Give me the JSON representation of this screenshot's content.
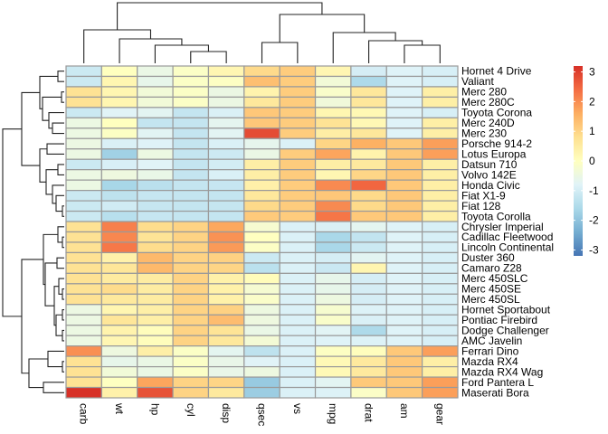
{
  "chart_data": {
    "type": "heatmap",
    "title": "",
    "columns": [
      "carb",
      "wt",
      "hp",
      "cyl",
      "disp",
      "qsec",
      "vs",
      "mpg",
      "drat",
      "am",
      "gear"
    ],
    "rows": [
      "Hornet 4 Drive",
      "Valiant",
      "Merc 280",
      "Merc 280C",
      "Toyota Corona",
      "Merc 240D",
      "Merc 230",
      "Porsche 914-2",
      "Lotus Europa",
      "Datsun 710",
      "Volvo 142E",
      "Honda Civic",
      "Fiat X1-9",
      "Fiat 128",
      "Toyota Corolla",
      "Chrysler Imperial",
      "Cadillac Fleetwood",
      "Lincoln Continental",
      "Duster 360",
      "Camaro Z28",
      "Merc 450SLC",
      "Merc 450SE",
      "Merc 450SL",
      "Hornet Sportabout",
      "Pontiac Firebird",
      "Dodge Challenger",
      "AMC Javelin",
      "Ferrari Dino",
      "Mazda RX4",
      "Mazda RX4 Wag",
      "Ford Pantera L",
      "Maserati Bora"
    ],
    "values": [
      [
        -1.12,
        -0.0,
        -0.54,
        -0.1,
        0.22,
        0.89,
        1.12,
        0.22,
        -0.97,
        -0.81,
        -0.93
      ],
      [
        -1.12,
        0.23,
        -0.61,
        -0.1,
        -0.05,
        1.33,
        1.12,
        -0.33,
        -1.56,
        -0.81,
        -0.93
      ],
      [
        0.74,
        0.23,
        -0.35,
        -0.1,
        -0.51,
        0.31,
        1.12,
        -0.15,
        0.61,
        -0.81,
        0.42
      ],
      [
        0.74,
        0.23,
        -0.35,
        -0.1,
        -0.51,
        0.59,
        1.12,
        -0.38,
        0.61,
        -0.81,
        0.42
      ],
      [
        -1.12,
        -0.77,
        -0.71,
        -1.22,
        -0.89,
        1.2,
        1.12,
        0.23,
        0.19,
        -0.81,
        -0.93
      ],
      [
        -0.5,
        -0.0,
        -1.23,
        -1.22,
        -0.68,
        1.2,
        1.12,
        0.72,
        0.17,
        -0.81,
        0.42
      ],
      [
        -0.5,
        -0.07,
        -0.75,
        -1.22,
        -0.73,
        2.83,
        1.12,
        0.45,
        0.61,
        -0.81,
        0.42
      ],
      [
        -0.5,
        -0.89,
        -0.82,
        -1.22,
        -0.89,
        -0.64,
        -0.87,
        0.98,
        1.56,
        1.19,
        1.78
      ],
      [
        -0.5,
        -1.74,
        -0.49,
        -1.22,
        -1.09,
        -0.53,
        1.12,
        1.71,
        0.32,
        1.19,
        1.78
      ],
      [
        -1.12,
        -0.92,
        -0.78,
        -1.22,
        -0.99,
        0.43,
        1.12,
        0.45,
        0.57,
        1.19,
        0.42
      ],
      [
        -0.5,
        -0.45,
        -0.56,
        -1.22,
        -0.89,
        0.43,
        1.12,
        0.22,
        0.96,
        1.19,
        0.42
      ],
      [
        -0.5,
        -1.64,
        -1.38,
        -1.22,
        -1.2,
        0.38,
        1.12,
        2.04,
        2.49,
        1.19,
        0.42
      ],
      [
        -1.12,
        -1.31,
        -1.19,
        -1.22,
        -1.22,
        0.59,
        1.12,
        1.2,
        0.9,
        1.19,
        0.42
      ],
      [
        -1.12,
        -1.04,
        -1.19,
        -1.22,
        -1.21,
        0.9,
        1.12,
        2.04,
        0.9,
        1.19,
        0.42
      ],
      [
        -1.12,
        -1.41,
        -1.19,
        -1.22,
        -1.22,
        1.15,
        1.12,
        2.29,
        1.17,
        1.19,
        0.42
      ],
      [
        0.74,
        2.17,
        0.85,
        1.01,
        1.68,
        -0.24,
        -0.87,
        -0.89,
        -0.69,
        -0.81,
        -0.93
      ],
      [
        0.74,
        2.08,
        0.7,
        1.01,
        1.95,
        -0.01,
        -0.87,
        -1.61,
        -1.25,
        -0.81,
        -0.93
      ],
      [
        0.74,
        2.26,
        0.85,
        1.01,
        1.85,
        -0.08,
        -0.87,
        -1.61,
        -1.12,
        -0.81,
        -0.93
      ],
      [
        0.74,
        0.36,
        1.43,
        1.01,
        1.04,
        -1.12,
        -0.87,
        -0.96,
        -0.72,
        -0.81,
        -0.93
      ],
      [
        0.74,
        0.64,
        1.43,
        1.01,
        0.97,
        -1.36,
        -0.87,
        -1.13,
        0.25,
        -0.81,
        -0.93
      ],
      [
        0.74,
        0.52,
        0.49,
        1.01,
        0.37,
        0.08,
        -0.87,
        -0.61,
        -0.97,
        -0.81,
        -0.93
      ],
      [
        0.74,
        0.87,
        0.49,
        1.01,
        0.37,
        -0.25,
        -0.87,
        -0.61,
        -0.97,
        -0.81,
        -0.93
      ],
      [
        0.74,
        0.58,
        0.49,
        1.01,
        0.37,
        -0.14,
        -0.87,
        -0.46,
        -0.97,
        -0.81,
        -0.93
      ],
      [
        -0.5,
        0.23,
        0.41,
        1.01,
        1.04,
        -0.46,
        -0.87,
        -0.23,
        -0.84,
        -0.81,
        -0.93
      ],
      [
        -0.5,
        0.64,
        0.41,
        1.01,
        1.37,
        -0.45,
        -0.87,
        -0.15,
        -0.89,
        -0.81,
        -0.93
      ],
      [
        -0.5,
        0.31,
        0.05,
        1.01,
        0.69,
        -0.55,
        -0.87,
        -0.76,
        -1.56,
        -0.81,
        -0.93
      ],
      [
        -0.5,
        0.22,
        0.05,
        1.01,
        0.6,
        -0.31,
        -0.87,
        -0.81,
        -0.84,
        -0.81,
        -0.93
      ],
      [
        1.98,
        -0.45,
        0.41,
        -0.1,
        -0.69,
        -1.31,
        -0.87,
        -0.06,
        0.04,
        1.19,
        1.78
      ],
      [
        0.74,
        -0.61,
        -0.54,
        -0.1,
        -0.57,
        -0.78,
        -0.87,
        0.15,
        0.57,
        1.19,
        0.42
      ],
      [
        0.74,
        -0.35,
        -0.54,
        -0.1,
        -0.57,
        -0.46,
        -0.87,
        0.15,
        0.57,
        1.19,
        0.42
      ],
      [
        0.74,
        -0.03,
        1.71,
        1.01,
        0.97,
        -1.87,
        -0.87,
        -0.71,
        1.17,
        1.19,
        1.78
      ],
      [
        3.21,
        0.36,
        2.75,
        1.01,
        0.57,
        -1.82,
        -0.87,
        -0.84,
        -0.11,
        1.19,
        1.78
      ]
    ],
    "color_scale": {
      "range": [
        -3.2,
        3.2
      ],
      "ticks": [
        "3",
        "2",
        "1",
        "0",
        "-1",
        "-2",
        "-3"
      ],
      "tick_values": [
        3,
        2,
        1,
        0,
        -1,
        -2,
        -3
      ],
      "low_color": "#4575B4",
      "mid_color": "#FFFFBF",
      "high_color": "#D73027",
      "legend_position": "right"
    },
    "row_dendrogram": true,
    "col_dendrogram": true
  }
}
